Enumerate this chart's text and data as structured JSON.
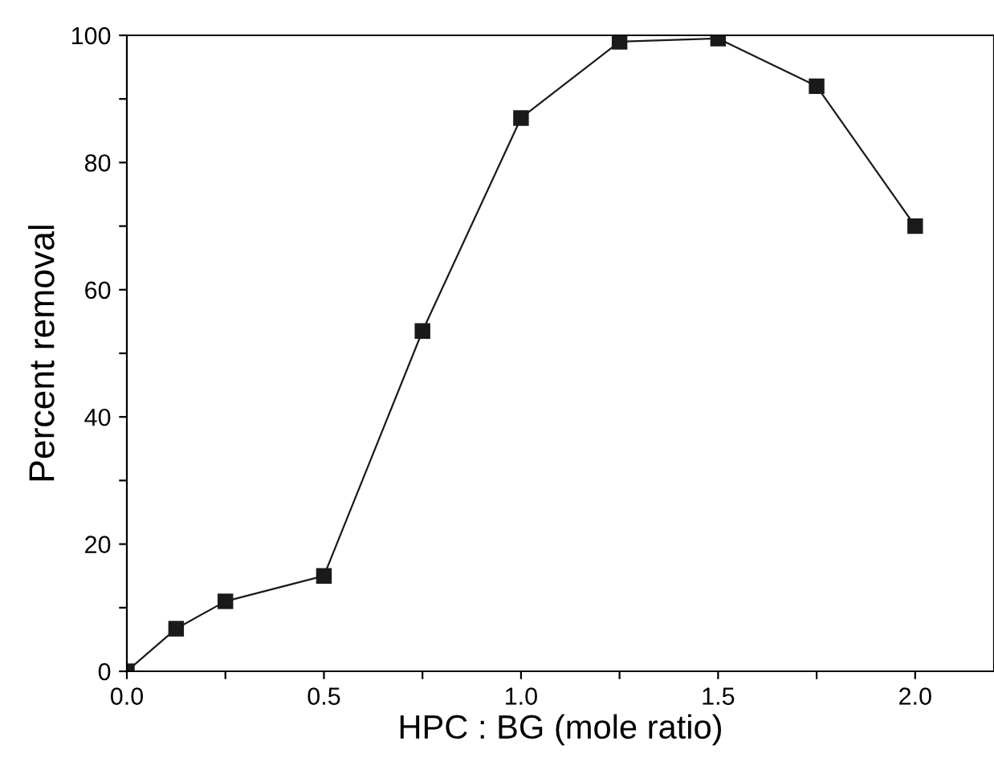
{
  "chart_data": {
    "type": "line",
    "xlabel": "HPC : BG (mole ratio)",
    "ylabel": "Percent removal",
    "x": [
      0,
      0.125,
      0.25,
      0.5,
      0.75,
      1.0,
      1.25,
      1.5,
      1.75,
      2.0
    ],
    "series": [
      {
        "color": "#1a1a1a",
        "values": [
          0,
          6.7,
          11,
          15,
          53.5,
          87,
          99,
          99.5,
          92,
          70
        ]
      }
    ],
    "xlim": [
      0,
      2.2
    ],
    "ylim": [
      0,
      100
    ],
    "xticks": [
      {
        "value": 0,
        "label": "0.0"
      },
      {
        "value": 0.25,
        "label": null
      },
      {
        "value": 0.5,
        "label": "0.5"
      },
      {
        "value": 0.75,
        "label": null
      },
      {
        "value": 1.0,
        "label": "1.0"
      },
      {
        "value": 1.25,
        "label": null
      },
      {
        "value": 1.5,
        "label": "1.5"
      },
      {
        "value": 1.75,
        "label": null
      },
      {
        "value": 2.0,
        "label": "2.0"
      }
    ],
    "yticks": [
      0,
      {
        "value": 10,
        "label": null
      },
      20,
      {
        "value": 30,
        "label": null
      },
      40,
      {
        "value": 50,
        "label": null
      },
      60,
      {
        "value": 70,
        "label": null
      },
      80,
      {
        "value": 90,
        "label": null
      },
      100
    ],
    "marker": "square",
    "line_style": "solid",
    "grid": false,
    "legend": false
  }
}
